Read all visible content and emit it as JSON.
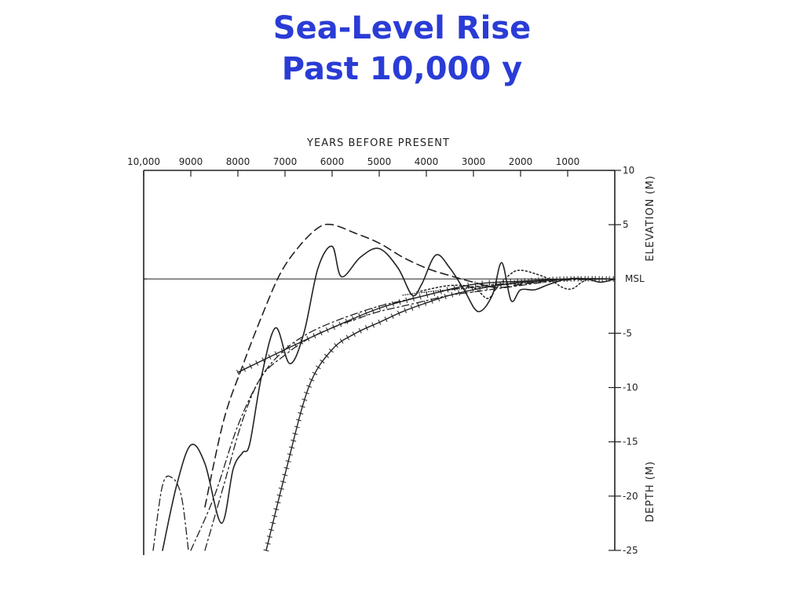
{
  "slide": {
    "title_line1": "Sea-Level Rise",
    "title_line2": "Past 10,000 y"
  },
  "colors": {
    "title": "#2a3cd6",
    "ink": "#222222"
  },
  "chart_data": {
    "type": "line",
    "top_axis_title": "YEARS BEFORE PRESENT",
    "right_axis_title_upper": "ELEVATION (M)",
    "right_axis_title_lower": "DEPTH (M)",
    "msl_label": "MSL",
    "x_ticks": [
      {
        "value": 10000,
        "label": "10,000"
      },
      {
        "value": 9000,
        "label": "9000"
      },
      {
        "value": 8000,
        "label": "8000"
      },
      {
        "value": 7000,
        "label": "7000"
      },
      {
        "value": 6000,
        "label": "6000"
      },
      {
        "value": 5000,
        "label": "5000"
      },
      {
        "value": 4000,
        "label": "4000"
      },
      {
        "value": 3000,
        "label": "3000"
      },
      {
        "value": 2000,
        "label": "2000"
      },
      {
        "value": 1000,
        "label": "1000"
      }
    ],
    "y_ticks": [
      {
        "value": 10,
        "label": "10"
      },
      {
        "value": 5,
        "label": "5"
      },
      {
        "value": -5,
        "label": "-5"
      },
      {
        "value": -10,
        "label": "-10"
      },
      {
        "value": -15,
        "label": "-15"
      },
      {
        "value": -20,
        "label": "-20"
      },
      {
        "value": -25,
        "label": "-25"
      }
    ],
    "xlim": [
      10000,
      0
    ],
    "ylim": [
      -25,
      10
    ],
    "series": [
      {
        "style": "solid",
        "points": [
          [
            9600,
            -25
          ],
          [
            9300,
            -19
          ],
          [
            9000,
            -15.3
          ],
          [
            8700,
            -17
          ],
          [
            8350,
            -22.5
          ],
          [
            8100,
            -17.5
          ],
          [
            7900,
            -16
          ],
          [
            7750,
            -15.2
          ],
          [
            7500,
            -9
          ],
          [
            7200,
            -4.5
          ],
          [
            6900,
            -7.8
          ],
          [
            6600,
            -5
          ],
          [
            6300,
            1
          ],
          [
            6000,
            3
          ],
          [
            5800,
            0.2
          ],
          [
            5400,
            2
          ],
          [
            5000,
            2.8
          ],
          [
            4600,
            1
          ],
          [
            4300,
            -1.5
          ],
          [
            4100,
            -0.5
          ],
          [
            3800,
            2.2
          ],
          [
            3500,
            1
          ],
          [
            3200,
            -1
          ],
          [
            2900,
            -3
          ],
          [
            2600,
            -1.5
          ],
          [
            2400,
            1.5
          ],
          [
            2200,
            -2
          ],
          [
            2000,
            -1
          ],
          [
            1700,
            -1
          ],
          [
            1400,
            -0.5
          ],
          [
            1000,
            0
          ],
          [
            600,
            0
          ],
          [
            300,
            -0.3
          ],
          [
            0,
            0
          ]
        ]
      },
      {
        "style": "long-dash",
        "points": [
          [
            8700,
            -21
          ],
          [
            8300,
            -13
          ],
          [
            7900,
            -8
          ],
          [
            7500,
            -3.5
          ],
          [
            7100,
            0.5
          ],
          [
            6700,
            3
          ],
          [
            6300,
            4.7
          ],
          [
            6000,
            5
          ],
          [
            5500,
            4.2
          ],
          [
            5000,
            3.3
          ],
          [
            4500,
            2
          ],
          [
            4000,
            1
          ],
          [
            3500,
            0.3
          ],
          [
            3000,
            -0.3
          ],
          [
            2500,
            -0.8
          ],
          [
            2000,
            -0.5
          ],
          [
            1500,
            -0.2
          ],
          [
            1000,
            0
          ],
          [
            0,
            0
          ]
        ]
      },
      {
        "style": "dash-dot",
        "points": [
          [
            9800,
            -25
          ],
          [
            9600,
            -19
          ],
          [
            9400,
            -18.3
          ],
          [
            9200,
            -20
          ],
          [
            9050,
            -25
          ]
        ]
      },
      {
        "style": "dash-dot",
        "points": [
          [
            9000,
            -25
          ],
          [
            8500,
            -20
          ],
          [
            8000,
            -13.5
          ],
          [
            7500,
            -9
          ],
          [
            7000,
            -6.5
          ],
          [
            6500,
            -5
          ],
          [
            6000,
            -4
          ],
          [
            5500,
            -3.2
          ],
          [
            5000,
            -2.5
          ],
          [
            4500,
            -2
          ],
          [
            4000,
            -1.5
          ],
          [
            3500,
            -1
          ],
          [
            3000,
            -0.7
          ],
          [
            2500,
            -0.5
          ],
          [
            2000,
            -0.3
          ],
          [
            1500,
            -0.15
          ],
          [
            1000,
            0
          ],
          [
            0,
            0
          ]
        ]
      },
      {
        "style": "dash-dot",
        "points": [
          [
            8700,
            -25
          ],
          [
            8300,
            -19
          ],
          [
            7900,
            -13
          ],
          [
            7500,
            -9
          ],
          [
            7000,
            -7
          ],
          [
            6500,
            -5.5
          ],
          [
            6000,
            -4.5
          ],
          [
            5500,
            -3.7
          ],
          [
            5000,
            -3
          ],
          [
            4500,
            -2.5
          ],
          [
            4000,
            -2
          ],
          [
            3500,
            -1.5
          ],
          [
            3000,
            -1.2
          ],
          [
            2500,
            -0.9
          ],
          [
            2000,
            -0.6
          ],
          [
            1500,
            -0.3
          ],
          [
            1000,
            -0.1
          ],
          [
            0,
            0
          ]
        ]
      },
      {
        "style": "hatched",
        "points": [
          [
            8000,
            -8.6
          ],
          [
            7000,
            -6.5
          ],
          [
            6000,
            -4.5
          ],
          [
            5000,
            -2.7
          ],
          [
            4000,
            -1.5
          ],
          [
            3000,
            -0.5
          ],
          [
            2000,
            -0.2
          ],
          [
            1000,
            0
          ],
          [
            0,
            0
          ]
        ]
      },
      {
        "style": "hatched",
        "points": [
          [
            7400,
            -25
          ],
          [
            7000,
            -18
          ],
          [
            6500,
            -10
          ],
          [
            6000,
            -6.5
          ],
          [
            5500,
            -5
          ],
          [
            5000,
            -4
          ],
          [
            4500,
            -3
          ],
          [
            4000,
            -2.2
          ],
          [
            3500,
            -1.5
          ],
          [
            3000,
            -1
          ],
          [
            2500,
            -0.6
          ],
          [
            2000,
            -0.3
          ],
          [
            1000,
            0
          ],
          [
            0,
            0
          ]
        ]
      },
      {
        "style": "dotted",
        "points": [
          [
            4200,
            -1.2
          ],
          [
            3500,
            -0.6
          ],
          [
            3000,
            -0.8
          ],
          [
            2700,
            -1.8
          ],
          [
            2500,
            -0.8
          ],
          [
            2200,
            0.5
          ],
          [
            2000,
            0.8
          ],
          [
            1700,
            0.5
          ],
          [
            1400,
            0
          ],
          [
            1100,
            -0.8
          ],
          [
            900,
            -0.9
          ],
          [
            700,
            -0.3
          ],
          [
            500,
            0
          ],
          [
            0,
            0
          ]
        ]
      },
      {
        "style": "fine-dot",
        "points": [
          [
            4500,
            -1.5
          ],
          [
            4000,
            -1.2
          ],
          [
            3500,
            -1
          ],
          [
            3000,
            -0.8
          ],
          [
            2500,
            -0.6
          ],
          [
            2000,
            -0.4
          ],
          [
            1500,
            -0.2
          ],
          [
            1000,
            0
          ],
          [
            0,
            0
          ]
        ]
      }
    ]
  }
}
